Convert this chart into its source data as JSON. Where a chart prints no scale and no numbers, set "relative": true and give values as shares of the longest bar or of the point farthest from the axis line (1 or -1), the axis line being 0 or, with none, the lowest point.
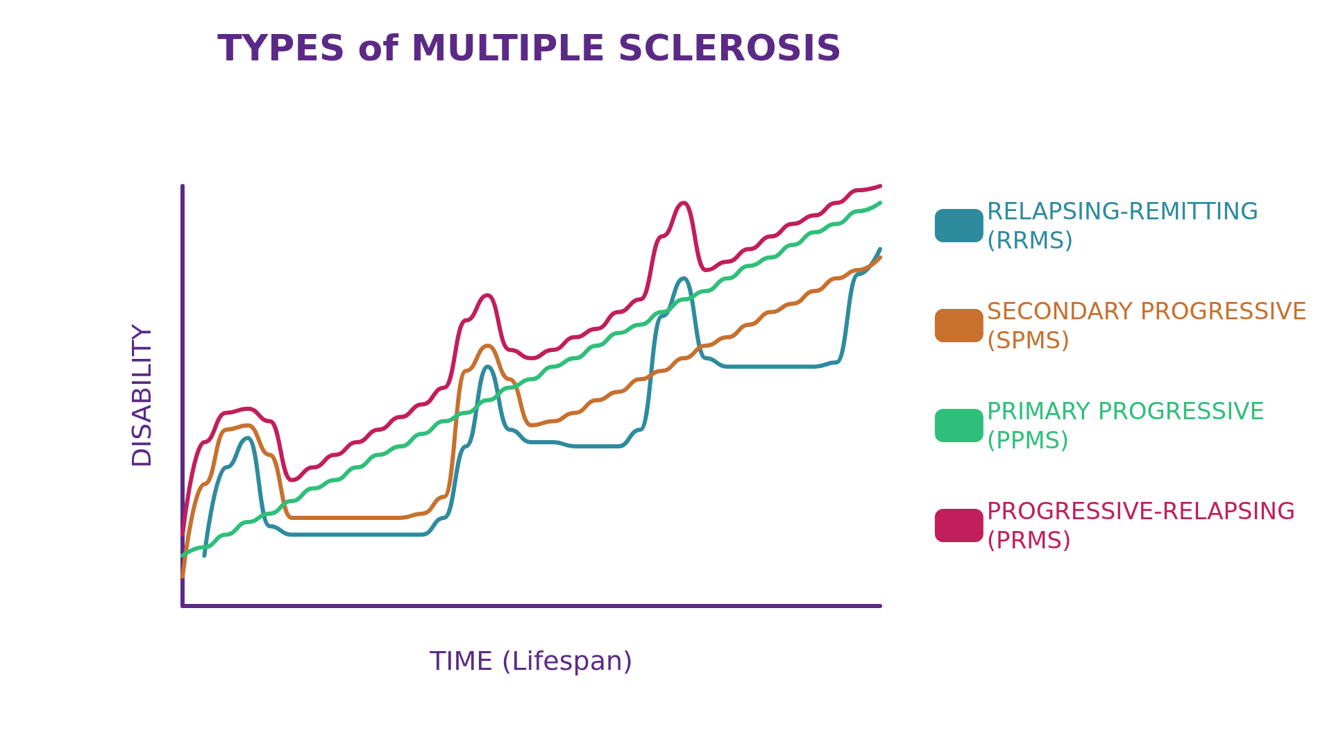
{
  "chart_data": {
    "type": "line",
    "title": "TYPES of MULTIPLE SCLEROSIS",
    "xlabel": "TIME (Lifespan)",
    "ylabel": "DISABILITY",
    "relative": true,
    "legend": "right",
    "categories": [
      null,
      null,
      null,
      null,
      null,
      null,
      null,
      null,
      null,
      null,
      null,
      null,
      null,
      null,
      null,
      null,
      null,
      null,
      null,
      null,
      null,
      null,
      null,
      null,
      null,
      null,
      null,
      null,
      null,
      null,
      null,
      null,
      null
    ],
    "series": [
      {
        "name": "RELAPSING-REMITTING (RRMS)",
        "color": "#2e8b9e",
        "values": [
          null,
          0.12,
          0.33,
          0.4,
          0.19,
          0.17,
          0.17,
          0.17,
          0.17,
          0.17,
          0.17,
          0.17,
          0.21,
          0.38,
          0.57,
          0.42,
          0.39,
          0.39,
          0.38,
          0.38,
          0.38,
          0.42,
          0.69,
          0.78,
          0.59,
          0.57,
          0.57,
          0.57,
          0.57,
          0.57,
          0.58,
          0.79,
          0.85
        ]
      },
      {
        "name": "SECONDARY PROGRESSIVE (SPMS)",
        "color": "#c8702e",
        "values": [
          0.07,
          0.29,
          0.42,
          0.43,
          0.36,
          0.21,
          0.21,
          0.21,
          0.21,
          0.21,
          0.21,
          0.22,
          0.26,
          0.56,
          0.62,
          0.54,
          0.43,
          0.44,
          0.46,
          0.49,
          0.51,
          0.54,
          0.56,
          0.59,
          0.62,
          0.64,
          0.67,
          0.7,
          0.72,
          0.75,
          0.78,
          0.8,
          0.83
        ]
      },
      {
        "name": "PRIMARY PROGRESSIVE (PPMS)",
        "color": "#2fbf7a",
        "values": [
          0.12,
          0.14,
          0.17,
          0.2,
          0.22,
          0.25,
          0.28,
          0.3,
          0.33,
          0.36,
          0.38,
          0.41,
          0.44,
          0.46,
          0.49,
          0.52,
          0.54,
          0.57,
          0.59,
          0.62,
          0.65,
          0.67,
          0.7,
          0.73,
          0.75,
          0.78,
          0.81,
          0.83,
          0.86,
          0.89,
          0.91,
          0.94,
          0.96
        ]
      },
      {
        "name": "PROGRESSIVE-RELAPSING (PRMS)",
        "color": "#c21e5b",
        "values": [
          0.17,
          0.39,
          0.46,
          0.47,
          0.44,
          0.3,
          0.33,
          0.36,
          0.39,
          0.42,
          0.45,
          0.48,
          0.52,
          0.68,
          0.74,
          0.61,
          0.59,
          0.61,
          0.64,
          0.66,
          0.7,
          0.73,
          0.88,
          0.96,
          0.8,
          0.82,
          0.85,
          0.88,
          0.91,
          0.93,
          0.96,
          0.99,
          1.0
        ]
      }
    ]
  }
}
